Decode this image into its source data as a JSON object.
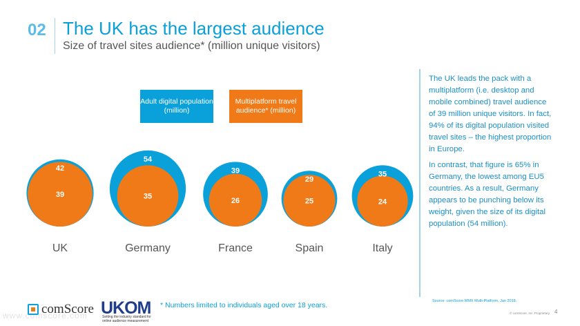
{
  "header": {
    "slide_number": "02",
    "title": "The UK has the largest audience",
    "subtitle": "Size of travel sites audience* (million unique visitors)"
  },
  "legend": {
    "adult_digital": "Adult digital population (million)",
    "multiplatform": "Multiplatform travel audience* (million)"
  },
  "colors": {
    "blue": "#0aa0da",
    "orange": "#f07a17"
  },
  "chart_data": {
    "type": "bubble",
    "title": "Size of travel sites audience* (million unique visitors)",
    "categories": [
      "UK",
      "Germany",
      "France",
      "Spain",
      "Italy"
    ],
    "series": [
      {
        "name": "Adult digital population (million)",
        "values": [
          42,
          54,
          39,
          29,
          35
        ]
      },
      {
        "name": "Multiplatform travel audience* (million)",
        "values": [
          39,
          35,
          26,
          25,
          24
        ]
      }
    ]
  },
  "side_panel": {
    "paragraph1": "The UK leads the pack with a multiplatform (i.e. desktop and mobile combined) travel audience of 39 million unique visitors. In fact, 94% of its digital population visited travel sites – the highest proportion in Europe.",
    "paragraph2": "In contrast, that figure is 65% in Germany, the lowest among EU5 countries. As a result, Germany appears to be punching below its weight, given the size of its digital population (54 million)."
  },
  "footer": {
    "source": "Source: comScore MMX Multi-Platform, Jan 2018.",
    "footnote": "* Numbers limited to individuals aged over 18 years.",
    "copyright": "© comScore, Inc. Proprietary.",
    "page_number": "4",
    "comscore_logo": "comScore",
    "comscore_url": "www.comscore.com",
    "ukom_logo": "UKOM",
    "ukom_tagline": "Setting the industry standard for online audience measurement"
  }
}
